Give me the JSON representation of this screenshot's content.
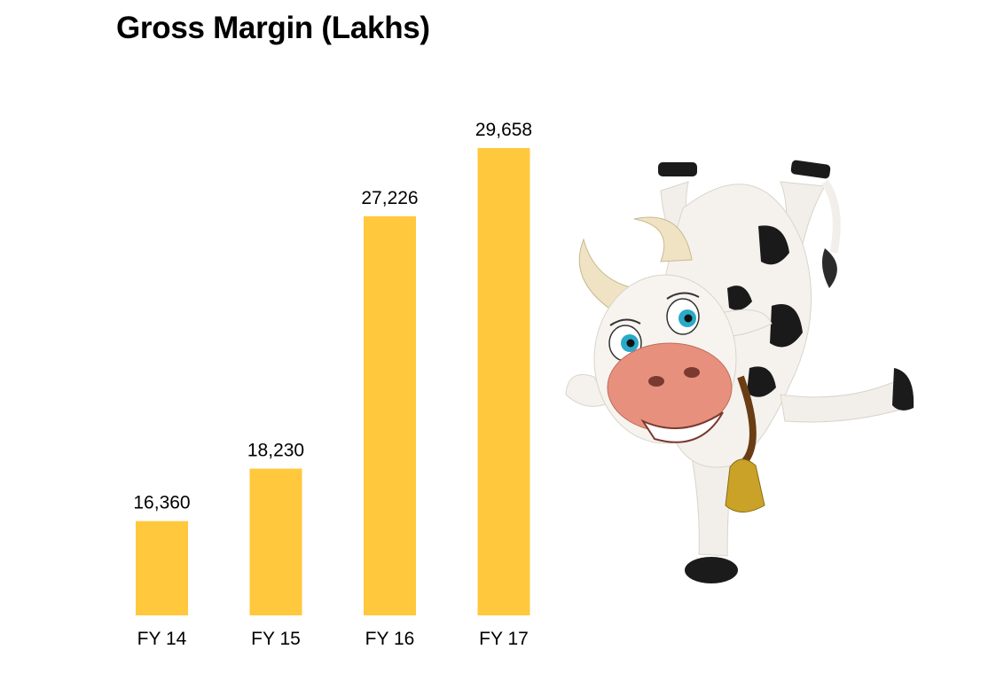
{
  "chart_data": {
    "type": "bar",
    "title": "Gross Margin (Lakhs)",
    "categories": [
      "FY 14",
      "FY 15",
      "FY 16",
      "FY 17"
    ],
    "values": [
      16360,
      18230,
      27226,
      29658
    ],
    "value_labels": [
      "16,360",
      "18,230",
      "27,226",
      "29,658"
    ],
    "xlabel": "",
    "ylabel": "",
    "ylim": [
      13000,
      31000
    ],
    "grid": false,
    "legend": "none",
    "bar_color": "#FFC83D"
  },
  "illustration": {
    "icon": "cartoon-cow-icon",
    "colors": {
      "body": "#F5F2EE",
      "spots": "#1A1A1A",
      "muzzle": "#E8907E",
      "eyes": "#2AA9C8",
      "bell": "#C9A227",
      "horns": "#EFE3C4"
    }
  }
}
